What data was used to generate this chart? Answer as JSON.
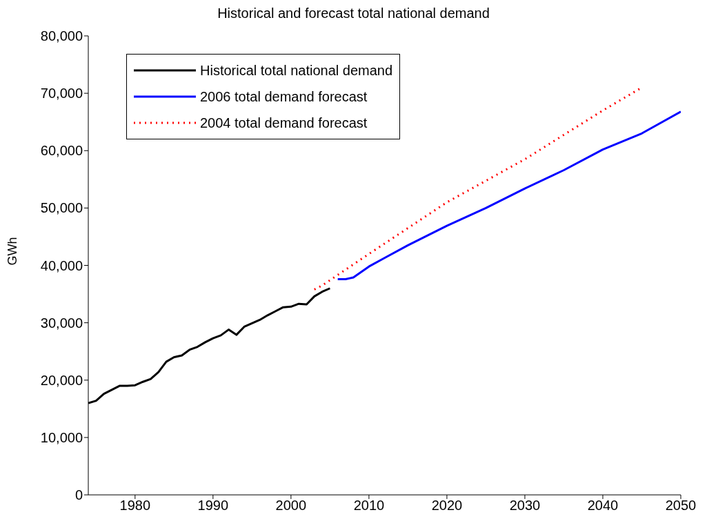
{
  "chart_data": {
    "type": "line",
    "title": "Historical and forecast total national demand",
    "ylabel": "GWh",
    "xlim": [
      1974,
      2050
    ],
    "xticks": [
      1980,
      1990,
      2000,
      2010,
      2020,
      2030,
      2040,
      2050
    ],
    "ylim": [
      0,
      80000
    ],
    "yticks": [
      {
        "value": 0,
        "label": "0"
      },
      {
        "value": 10000,
        "label": "10,000"
      },
      {
        "value": 20000,
        "label": "20,000"
      },
      {
        "value": 30000,
        "label": "30,000"
      },
      {
        "value": 40000,
        "label": "40,000"
      },
      {
        "value": 50000,
        "label": "50,000"
      },
      {
        "value": 60000,
        "label": "60,000"
      },
      {
        "value": 70000,
        "label": "70,000"
      },
      {
        "value": 80000,
        "label": "80,000"
      }
    ],
    "grid": false,
    "legend": "top left",
    "marker": "none",
    "series": [
      {
        "name": "Historical total national demand",
        "color": "#000000",
        "line_style": "solid",
        "x": [
          1974,
          1975,
          1976,
          1977,
          1978,
          1979,
          1980,
          1981,
          1982,
          1983,
          1984,
          1985,
          1986,
          1987,
          1988,
          1989,
          1990,
          1991,
          1992,
          1993,
          1994,
          1995,
          1996,
          1997,
          1998,
          1999,
          2000,
          2001,
          2002,
          2003,
          2004,
          2005
        ],
        "values": [
          16000,
          16400,
          17600,
          18300,
          19000,
          19000,
          19100,
          19700,
          20200,
          21400,
          23200,
          24000,
          24300,
          25300,
          25800,
          26600,
          27300,
          27800,
          28800,
          27900,
          29300,
          29900,
          30500,
          31300,
          32000,
          32700,
          32800,
          33300,
          33200,
          34600,
          35400,
          36000
        ]
      },
      {
        "name": "2006 total demand forecast",
        "color": "#0000ff",
        "line_style": "solid",
        "x": [
          2006,
          2007,
          2008,
          2010,
          2012,
          2015,
          2020,
          2025,
          2030,
          2035,
          2040,
          2045,
          2050
        ],
        "values": [
          37600,
          37600,
          37900,
          39800,
          41300,
          43500,
          46900,
          50000,
          53400,
          56600,
          60200,
          63000,
          66800
        ]
      },
      {
        "name": "2004 total demand forecast",
        "color": "#ff0000",
        "line_style": "dotted",
        "x": [
          2003,
          2004,
          2010,
          2020,
          2030,
          2040,
          2045
        ],
        "values": [
          35800,
          36500,
          42000,
          51000,
          58500,
          67000,
          71000
        ]
      }
    ]
  }
}
